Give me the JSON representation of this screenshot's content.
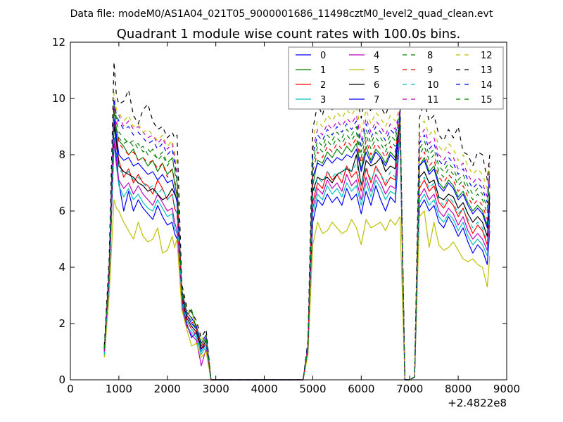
{
  "chart_data": {
    "type": "line",
    "suptitle": "Data file: modeM0/AS1A04_021T05_9000001686_11498cztM0_level2_quad_clean.evt",
    "title": "Quadrant 1 module wise count rates with 100.0s bins.",
    "xlabel": "",
    "ylabel": "",
    "x_offset_label": "+2.4822e8",
    "xlim": [
      0,
      9000
    ],
    "ylim": [
      0,
      12
    ],
    "xticks": [
      0,
      1000,
      2000,
      3000,
      4000,
      5000,
      6000,
      7000,
      8000,
      9000
    ],
    "xtick_labels": [
      "0",
      "1000",
      "2000",
      "3000",
      "4000",
      "5000",
      "6000",
      "7000",
      "8000",
      "9000"
    ],
    "yticks": [
      0,
      2,
      4,
      6,
      8,
      10,
      12
    ],
    "ytick_labels": [
      "0",
      "2",
      "4",
      "6",
      "8",
      "10",
      "12"
    ],
    "legend_location": "upper-right",
    "legend_columns": 4,
    "x": [
      700,
      800,
      900,
      950,
      1000,
      1100,
      1200,
      1300,
      1400,
      1500,
      1600,
      1700,
      1800,
      1900,
      2000,
      2100,
      2150,
      2200,
      2300,
      2400,
      2500,
      2600,
      2700,
      2800,
      2900,
      3000,
      4000,
      4800,
      4900,
      5000,
      5100,
      5200,
      5300,
      5400,
      5500,
      5600,
      5700,
      5800,
      5900,
      6000,
      6100,
      6200,
      6300,
      6400,
      6500,
      6600,
      6700,
      6800,
      6900,
      7000,
      7100,
      7200,
      7300,
      7400,
      7500,
      7600,
      7700,
      7800,
      7900,
      8000,
      8100,
      8200,
      8300,
      8400,
      8500,
      8600,
      8650
    ],
    "series": [
      {
        "name": "0",
        "color": "#0000ff",
        "style": "solid",
        "values": [
          1.0,
          3.5,
          8.6,
          8.0,
          7.0,
          6.0,
          6.7,
          6.0,
          6.4,
          6.1,
          5.9,
          5.7,
          6.2,
          5.8,
          5.5,
          5.6,
          5.2,
          5.0,
          2.8,
          2.0,
          1.5,
          1.7,
          1.0,
          1.3,
          0.0,
          0.0,
          0.0,
          0.0,
          1.1,
          5.6,
          6.4,
          6.2,
          6.6,
          6.3,
          6.5,
          6.2,
          6.8,
          6.4,
          6.6,
          5.9,
          6.7,
          6.2,
          6.9,
          6.4,
          6.0,
          6.5,
          6.3,
          8.8,
          0.0,
          0.0,
          0.1,
          6.1,
          6.4,
          6.0,
          6.2,
          5.6,
          5.4,
          5.8,
          5.5,
          5.1,
          5.4,
          4.9,
          4.5,
          4.8,
          4.6,
          4.1,
          5.3
        ]
      },
      {
        "name": "1",
        "color": "#008000",
        "style": "solid",
        "values": [
          1.1,
          3.8,
          9.8,
          8.9,
          8.5,
          8.3,
          8.0,
          8.2,
          7.8,
          7.9,
          7.6,
          7.8,
          7.4,
          7.7,
          7.3,
          7.5,
          7.0,
          6.5,
          3.1,
          2.3,
          2.5,
          1.8,
          1.2,
          1.5,
          0.0,
          0.0,
          0.0,
          0.0,
          1.2,
          6.9,
          7.8,
          7.7,
          8.1,
          7.9,
          8.2,
          8.0,
          8.3,
          8.1,
          8.4,
          7.5,
          8.3,
          7.8,
          8.2,
          8.0,
          7.7,
          8.1,
          7.9,
          9.4,
          0.0,
          0.0,
          0.1,
          7.6,
          7.9,
          7.4,
          7.6,
          7.0,
          6.8,
          7.1,
          6.9,
          6.5,
          6.7,
          6.3,
          6.0,
          6.2,
          6.0,
          5.5,
          6.6
        ]
      },
      {
        "name": "2",
        "color": "#ff0000",
        "style": "solid",
        "values": [
          1.0,
          3.6,
          9.2,
          8.3,
          7.8,
          7.2,
          7.5,
          7.0,
          7.3,
          7.0,
          6.9,
          6.6,
          7.1,
          6.8,
          6.4,
          6.6,
          6.1,
          5.9,
          2.9,
          2.1,
          1.8,
          1.6,
          1.1,
          1.3,
          0.0,
          0.0,
          0.0,
          0.0,
          1.1,
          6.3,
          7.0,
          6.8,
          7.4,
          7.1,
          7.3,
          7.0,
          7.6,
          7.2,
          7.4,
          6.7,
          7.5,
          7.0,
          7.6,
          7.3,
          6.9,
          7.2,
          7.1,
          9.0,
          0.0,
          0.0,
          0.1,
          6.8,
          7.1,
          6.7,
          6.9,
          6.3,
          6.1,
          6.4,
          6.2,
          5.8,
          6.1,
          5.6,
          5.2,
          5.5,
          5.3,
          4.8,
          6.0
        ]
      },
      {
        "name": "3",
        "color": "#00bfbf",
        "style": "solid",
        "values": [
          0.8,
          3.3,
          8.4,
          7.6,
          6.9,
          6.5,
          6.8,
          6.4,
          6.6,
          6.3,
          6.1,
          6.0,
          6.4,
          6.1,
          5.8,
          5.9,
          5.4,
          5.2,
          2.7,
          1.9,
          1.7,
          1.5,
          0.9,
          1.2,
          0.0,
          0.0,
          0.0,
          0.0,
          1.0,
          5.9,
          6.6,
          6.4,
          6.9,
          6.6,
          6.8,
          6.5,
          7.0,
          6.7,
          6.9,
          6.2,
          7.0,
          6.5,
          7.1,
          6.8,
          6.4,
          6.7,
          6.6,
          8.9,
          0.0,
          0.0,
          0.1,
          6.3,
          6.6,
          6.2,
          6.4,
          5.8,
          5.6,
          5.9,
          5.7,
          5.3,
          5.6,
          5.1,
          4.8,
          5.0,
          4.8,
          4.4,
          5.5
        ]
      },
      {
        "name": "4",
        "color": "#bf00bf",
        "style": "solid",
        "values": [
          0.9,
          3.4,
          8.5,
          7.7,
          7.1,
          6.8,
          7.0,
          6.6,
          6.9,
          6.6,
          6.4,
          6.2,
          6.6,
          6.3,
          6.0,
          6.1,
          5.6,
          5.3,
          2.6,
          1.9,
          1.6,
          1.4,
          0.5,
          1.1,
          0.0,
          0.0,
          0.0,
          0.0,
          1.0,
          6.1,
          6.8,
          6.6,
          7.1,
          6.8,
          7.0,
          6.7,
          7.3,
          6.9,
          7.1,
          6.4,
          7.2,
          6.7,
          7.3,
          7.0,
          6.6,
          6.9,
          6.8,
          9.0,
          0.0,
          0.0,
          0.1,
          6.5,
          6.8,
          6.4,
          6.6,
          6.0,
          5.8,
          6.1,
          5.9,
          5.5,
          5.8,
          5.3,
          5.0,
          5.2,
          5.0,
          4.6,
          5.7
        ]
      },
      {
        "name": "5",
        "color": "#bfbf00",
        "style": "solid",
        "values": [
          0.8,
          3.0,
          6.4,
          6.1,
          6.0,
          5.6,
          5.3,
          5.0,
          5.6,
          5.1,
          4.9,
          5.0,
          5.4,
          4.5,
          4.6,
          5.1,
          4.7,
          5.0,
          2.5,
          1.8,
          1.2,
          1.3,
          0.8,
          1.0,
          0.0,
          0.0,
          0.0,
          0.0,
          0.9,
          4.8,
          5.6,
          5.2,
          5.3,
          5.6,
          5.4,
          5.2,
          5.3,
          5.7,
          5.4,
          4.8,
          5.7,
          5.4,
          5.5,
          5.6,
          5.3,
          5.7,
          5.5,
          5.8,
          0.0,
          0.0,
          0.1,
          5.8,
          6.0,
          4.7,
          5.6,
          4.8,
          4.6,
          4.7,
          4.9,
          4.6,
          4.3,
          4.2,
          4.3,
          4.1,
          4.0,
          3.3,
          4.4
        ]
      },
      {
        "name": "6",
        "color": "#000000",
        "style": "solid",
        "values": [
          1.0,
          3.7,
          9.0,
          8.5,
          7.6,
          7.4,
          7.3,
          7.2,
          7.0,
          6.9,
          6.7,
          6.8,
          6.6,
          6.4,
          6.5,
          6.8,
          6.6,
          6.4,
          3.0,
          2.2,
          1.9,
          1.7,
          1.1,
          1.4,
          0.0,
          0.0,
          0.0,
          0.0,
          1.1,
          6.7,
          7.2,
          7.1,
          7.2,
          7.0,
          7.3,
          7.4,
          7.5,
          7.4,
          8.0,
          6.9,
          7.8,
          7.6,
          7.7,
          7.9,
          7.4,
          7.6,
          7.5,
          9.3,
          0.0,
          0.0,
          0.1,
          7.2,
          7.4,
          7.0,
          7.1,
          6.5,
          6.4,
          6.6,
          6.5,
          6.1,
          6.3,
          5.9,
          5.6,
          5.8,
          5.6,
          5.1,
          6.3
        ]
      },
      {
        "name": "7",
        "color": "#0000ff",
        "style": "solid",
        "values": [
          1.0,
          3.8,
          9.3,
          8.7,
          8.0,
          7.8,
          7.9,
          7.6,
          7.7,
          7.5,
          7.3,
          7.4,
          7.1,
          7.3,
          7.0,
          7.1,
          6.7,
          6.3,
          3.1,
          2.3,
          2.0,
          1.8,
          1.2,
          1.5,
          0.0,
          0.0,
          0.0,
          0.0,
          1.2,
          7.2,
          7.7,
          7.6,
          7.9,
          7.7,
          7.9,
          7.8,
          8.0,
          7.9,
          8.2,
          7.4,
          8.1,
          7.7,
          8.1,
          7.9,
          7.6,
          8.0,
          7.8,
          9.4,
          0.0,
          0.0,
          0.1,
          7.6,
          7.8,
          7.3,
          7.5,
          6.9,
          6.7,
          7.0,
          6.8,
          6.4,
          6.6,
          6.2,
          5.9,
          6.1,
          5.9,
          5.4,
          6.5
        ]
      },
      {
        "name": "8",
        "color": "#008000",
        "style": "dashed",
        "values": [
          1.1,
          4.0,
          9.9,
          9.3,
          8.8,
          8.6,
          8.4,
          8.5,
          8.2,
          8.3,
          8.0,
          8.2,
          7.8,
          8.0,
          7.6,
          7.9,
          7.4,
          7.0,
          3.2,
          2.4,
          2.2,
          1.9,
          1.3,
          1.6,
          0.0,
          0.0,
          0.0,
          0.0,
          1.2,
          7.8,
          8.5,
          8.3,
          8.7,
          8.5,
          8.8,
          8.6,
          8.9,
          8.7,
          9.0,
          8.1,
          8.9,
          8.4,
          8.8,
          8.6,
          8.3,
          8.7,
          8.5,
          9.5,
          0.0,
          0.0,
          0.1,
          8.2,
          8.5,
          8.0,
          8.2,
          7.6,
          7.4,
          7.7,
          7.5,
          7.1,
          7.3,
          6.9,
          6.6,
          6.8,
          6.6,
          6.1,
          7.3
        ]
      },
      {
        "name": "9",
        "color": "#ff0000",
        "style": "dashed",
        "values": [
          1.0,
          3.9,
          9.6,
          9.0,
          8.4,
          8.2,
          8.0,
          8.1,
          7.8,
          7.9,
          7.7,
          7.8,
          7.5,
          7.7,
          7.2,
          7.5,
          7.1,
          6.7,
          3.1,
          2.3,
          2.1,
          1.8,
          1.2,
          1.5,
          0.0,
          0.0,
          0.0,
          0.0,
          1.2,
          7.4,
          8.1,
          7.9,
          8.3,
          8.1,
          8.4,
          8.2,
          8.5,
          8.3,
          8.6,
          7.7,
          8.5,
          8.0,
          8.4,
          8.2,
          7.9,
          8.3,
          8.1,
          9.3,
          0.0,
          0.0,
          0.1,
          7.8,
          8.1,
          7.6,
          7.8,
          7.2,
          7.0,
          7.3,
          7.1,
          6.7,
          6.9,
          6.5,
          6.2,
          6.4,
          6.2,
          5.7,
          6.9
        ]
      },
      {
        "name": "10",
        "color": "#00bfbf",
        "style": "dashed",
        "values": [
          0.9,
          3.5,
          8.8,
          8.1,
          7.5,
          7.3,
          7.4,
          7.1,
          7.2,
          7.0,
          6.8,
          6.9,
          6.6,
          6.8,
          6.4,
          6.6,
          6.2,
          5.9,
          2.9,
          2.1,
          1.8,
          1.6,
          1.0,
          1.3,
          0.0,
          0.0,
          0.0,
          0.0,
          1.1,
          6.5,
          7.2,
          7.0,
          7.4,
          7.2,
          7.4,
          7.3,
          7.6,
          7.4,
          7.7,
          6.9,
          7.6,
          7.1,
          7.5,
          7.3,
          7.0,
          7.4,
          7.2,
          8.8,
          0.0,
          0.0,
          0.1,
          7.0,
          7.2,
          6.8,
          7.0,
          6.4,
          6.2,
          6.5,
          6.3,
          5.9,
          6.1,
          5.7,
          5.4,
          5.6,
          5.4,
          4.9,
          6.1
        ]
      },
      {
        "name": "11",
        "color": "#bf00bf",
        "style": "dashed",
        "values": [
          1.0,
          3.9,
          9.7,
          9.1,
          9.4,
          9.0,
          9.2,
          8.9,
          9.0,
          8.8,
          8.6,
          8.7,
          8.4,
          8.6,
          8.2,
          8.4,
          7.9,
          7.3,
          3.2,
          2.4,
          2.2,
          1.9,
          1.3,
          1.6,
          0.0,
          0.0,
          0.0,
          0.0,
          1.3,
          8.2,
          8.9,
          8.7,
          9.1,
          8.9,
          9.2,
          9.0,
          9.3,
          9.1,
          9.4,
          8.5,
          9.3,
          8.8,
          9.2,
          9.0,
          8.7,
          9.1,
          8.9,
          9.6,
          0.0,
          0.0,
          0.1,
          8.6,
          8.9,
          8.4,
          8.6,
          8.0,
          7.8,
          8.1,
          7.9,
          7.5,
          7.7,
          7.3,
          7.0,
          7.2,
          7.0,
          6.5,
          7.6
        ]
      },
      {
        "name": "12",
        "color": "#bfbf00",
        "style": "dashed",
        "values": [
          1.1,
          4.1,
          10.2,
          9.6,
          9.5,
          9.2,
          9.4,
          9.0,
          9.1,
          8.8,
          8.9,
          8.7,
          8.5,
          8.7,
          8.3,
          8.5,
          8.1,
          7.6,
          3.3,
          2.5,
          2.3,
          2.0,
          1.4,
          1.7,
          0.0,
          0.0,
          0.0,
          0.0,
          1.3,
          8.6,
          9.2,
          9.0,
          9.4,
          9.2,
          9.5,
          9.3,
          9.6,
          9.4,
          9.7,
          8.8,
          9.6,
          9.1,
          9.5,
          9.3,
          9.0,
          9.4,
          9.2,
          9.7,
          0.0,
          0.0,
          0.1,
          9.0,
          9.2,
          8.7,
          8.9,
          8.3,
          8.1,
          8.4,
          8.2,
          7.8,
          8.0,
          7.6,
          7.3,
          7.5,
          7.3,
          6.8,
          7.8
        ]
      },
      {
        "name": "13",
        "color": "#000000",
        "style": "dashed",
        "values": [
          1.2,
          4.3,
          11.3,
          10.1,
          9.8,
          9.9,
          10.3,
          9.4,
          9.1,
          9.6,
          9.8,
          9.2,
          8.9,
          9.0,
          8.6,
          8.8,
          8.6,
          8.7,
          3.4,
          2.6,
          2.4,
          2.1,
          1.5,
          1.8,
          0.0,
          0.0,
          0.0,
          0.0,
          1.4,
          8.9,
          9.8,
          9.4,
          10.1,
          9.6,
          9.9,
          9.7,
          10.2,
          9.8,
          10.1,
          9.3,
          10.2,
          9.5,
          10.0,
          9.7,
          9.4,
          9.9,
          9.6,
          9.8,
          0.0,
          0.0,
          0.1,
          9.3,
          9.9,
          9.2,
          9.4,
          8.7,
          8.5,
          8.9,
          8.6,
          9.0,
          8.1,
          8.0,
          7.6,
          8.1,
          8.0,
          7.1,
          8.0
        ]
      },
      {
        "name": "14",
        "color": "#0000ff",
        "style": "dashed",
        "values": [
          1.1,
          4.0,
          10.0,
          9.4,
          9.2,
          8.9,
          9.0,
          8.7,
          8.8,
          8.6,
          8.4,
          8.5,
          8.2,
          8.4,
          8.0,
          8.2,
          7.7,
          7.2,
          3.2,
          2.4,
          2.2,
          1.9,
          1.3,
          1.6,
          0.0,
          0.0,
          0.0,
          0.0,
          1.3,
          8.0,
          8.7,
          8.5,
          8.9,
          8.7,
          9.0,
          8.8,
          9.1,
          8.9,
          9.2,
          8.3,
          9.1,
          8.6,
          9.0,
          8.8,
          8.5,
          8.9,
          8.7,
          9.5,
          0.0,
          0.0,
          0.1,
          8.4,
          8.7,
          8.2,
          8.4,
          7.8,
          7.6,
          7.9,
          7.7,
          7.3,
          7.5,
          7.1,
          6.8,
          7.0,
          6.8,
          6.3,
          7.4
        ]
      },
      {
        "name": "15",
        "color": "#008000",
        "style": "dashed",
        "values": [
          1.1,
          3.9,
          9.5,
          8.9,
          8.6,
          8.4,
          8.5,
          8.3,
          8.4,
          8.1,
          8.2,
          8.0,
          7.9,
          8.1,
          7.7,
          7.9,
          7.5,
          7.1,
          3.1,
          2.3,
          2.1,
          1.8,
          1.2,
          1.5,
          0.0,
          0.0,
          0.0,
          0.0,
          1.2,
          7.6,
          8.3,
          8.1,
          8.5,
          8.3,
          8.6,
          8.4,
          8.7,
          8.5,
          8.8,
          7.9,
          8.7,
          8.2,
          8.6,
          8.4,
          8.1,
          8.5,
          8.3,
          9.2,
          0.0,
          0.0,
          0.1,
          8.0,
          8.3,
          7.8,
          8.0,
          7.4,
          7.2,
          7.5,
          7.3,
          6.9,
          7.1,
          6.7,
          6.4,
          6.6,
          6.4,
          5.9,
          7.0
        ]
      }
    ]
  }
}
